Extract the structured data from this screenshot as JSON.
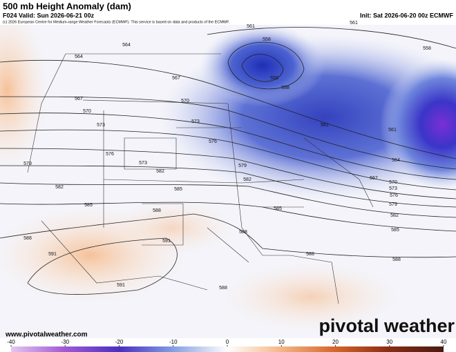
{
  "header": {
    "title": "500 mb Height Anomaly (dam)",
    "valid": "F024 Valid: Sun 2026-06-21 00z",
    "init": "Init: Sat 2026-06-20 00z ECMWF",
    "credit": "(c) 2026 European Centre for Medium-range Weather Forecasts (ECMWF). This service is based on data and products of the ECMWF."
  },
  "map": {
    "contour_labels": [
      "561",
      "561",
      "558",
      "564",
      "564",
      "558",
      "555",
      "558",
      "567",
      "567",
      "570",
      "570",
      "573",
      "573",
      "576",
      "576",
      "573",
      "579",
      "582",
      "579",
      "582",
      "585",
      "582",
      "585",
      "585",
      "588",
      "588",
      "591",
      "588",
      "591",
      "591",
      "588",
      "588",
      "588",
      "585",
      "582",
      "579",
      "576",
      "573",
      "570",
      "567",
      "564",
      "561",
      "561"
    ]
  },
  "watermark": {
    "url": "www.pivotalweather.com",
    "brand": "pivotal weather"
  },
  "colorbar": {
    "ticks": [
      -40,
      -30,
      -20,
      -10,
      0,
      10,
      20,
      30,
      40
    ]
  }
}
